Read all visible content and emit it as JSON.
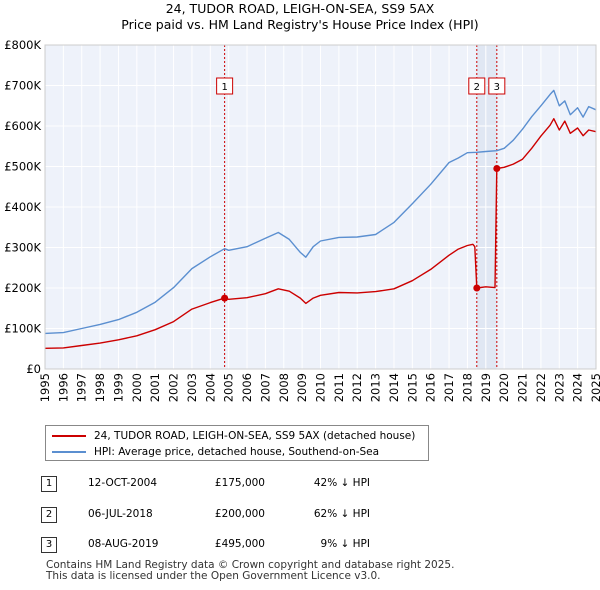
{
  "title_lines": [
    "24, TUDOR ROAD, LEIGH-ON-SEA, SS9 5AX",
    "Price paid vs. HM Land Registry's House Price Index (HPI)"
  ],
  "chart_data": {
    "type": "line",
    "title": "24, TUDOR ROAD, LEIGH-ON-SEA, SS9 5AX — Price paid vs. HM Land Registry's House Price Index (HPI)",
    "xlabel": "",
    "ylabel": "",
    "xlim": [
      1995,
      2025
    ],
    "ylim": [
      0,
      800000
    ],
    "grid": true,
    "x_ticks": [
      1995,
      1996,
      1997,
      1998,
      1999,
      2000,
      2001,
      2002,
      2003,
      2004,
      2005,
      2006,
      2007,
      2008,
      2009,
      2010,
      2011,
      2012,
      2013,
      2014,
      2015,
      2016,
      2017,
      2018,
      2019,
      2020,
      2021,
      2022,
      2023,
      2024,
      2025
    ],
    "y_ticks": [
      0,
      100000,
      200000,
      300000,
      400000,
      500000,
      600000,
      700000,
      800000
    ],
    "y_tick_labels": [
      "£0",
      "£100K",
      "£200K",
      "£300K",
      "£400K",
      "£500K",
      "£600K",
      "£700K",
      "£800K"
    ],
    "series": [
      {
        "name": "24, TUDOR ROAD, LEIGH-ON-SEA, SS9 5AX (detached house)",
        "color": "#cc0000",
        "points": [
          [
            1995.0,
            51000
          ],
          [
            1996.0,
            52000
          ],
          [
            1997.0,
            58000
          ],
          [
            1998.0,
            64000
          ],
          [
            1999.0,
            72000
          ],
          [
            2000.0,
            82000
          ],
          [
            2001.0,
            97000
          ],
          [
            2002.0,
            117000
          ],
          [
            2003.0,
            148000
          ],
          [
            2004.0,
            164000
          ],
          [
            2004.78,
            175000
          ],
          [
            2005.0,
            172000
          ],
          [
            2006.0,
            176000
          ],
          [
            2007.0,
            186000
          ],
          [
            2007.7,
            198000
          ],
          [
            2008.3,
            192000
          ],
          [
            2008.9,
            175000
          ],
          [
            2009.2,
            162000
          ],
          [
            2009.6,
            175000
          ],
          [
            2010.0,
            182000
          ],
          [
            2011.0,
            189000
          ],
          [
            2012.0,
            188000
          ],
          [
            2013.0,
            191000
          ],
          [
            2014.0,
            198000
          ],
          [
            2015.0,
            218000
          ],
          [
            2016.0,
            246000
          ],
          [
            2017.0,
            281000
          ],
          [
            2017.5,
            296000
          ],
          [
            2018.0,
            305000
          ],
          [
            2018.3,
            308000
          ],
          [
            2018.4,
            302000
          ],
          [
            2018.51,
            200000
          ],
          [
            2019.0,
            203000
          ],
          [
            2019.5,
            201000
          ],
          [
            2019.6,
            495000
          ],
          [
            2020.0,
            498000
          ],
          [
            2020.5,
            506000
          ],
          [
            2021.0,
            518000
          ],
          [
            2021.5,
            545000
          ],
          [
            2022.0,
            575000
          ],
          [
            2022.5,
            602000
          ],
          [
            2022.7,
            618000
          ],
          [
            2023.0,
            590000
          ],
          [
            2023.3,
            612000
          ],
          [
            2023.6,
            582000
          ],
          [
            2024.0,
            595000
          ],
          [
            2024.3,
            576000
          ],
          [
            2024.6,
            590000
          ],
          [
            2025.0,
            586000
          ]
        ]
      },
      {
        "name": "HPI: Average price, detached house, Southend-on-Sea",
        "color": "#5b8fd0",
        "points": [
          [
            1995.0,
            88000
          ],
          [
            1996.0,
            90000
          ],
          [
            1997.0,
            100000
          ],
          [
            1998.0,
            110000
          ],
          [
            1999.0,
            122000
          ],
          [
            2000.0,
            140000
          ],
          [
            2001.0,
            165000
          ],
          [
            2002.0,
            201000
          ],
          [
            2003.0,
            248000
          ],
          [
            2004.0,
            277000
          ],
          [
            2004.78,
            297000
          ],
          [
            2005.0,
            293000
          ],
          [
            2006.0,
            302000
          ],
          [
            2007.0,
            323000
          ],
          [
            2007.7,
            337000
          ],
          [
            2008.3,
            320000
          ],
          [
            2008.9,
            288000
          ],
          [
            2009.2,
            276000
          ],
          [
            2009.6,
            302000
          ],
          [
            2010.0,
            316000
          ],
          [
            2011.0,
            325000
          ],
          [
            2012.0,
            326000
          ],
          [
            2013.0,
            332000
          ],
          [
            2014.0,
            362000
          ],
          [
            2015.0,
            408000
          ],
          [
            2016.0,
            456000
          ],
          [
            2017.0,
            510000
          ],
          [
            2017.5,
            521000
          ],
          [
            2018.0,
            534000
          ],
          [
            2018.51,
            535000
          ],
          [
            2019.0,
            537000
          ],
          [
            2019.6,
            539000
          ],
          [
            2020.0,
            545000
          ],
          [
            2020.5,
            565000
          ],
          [
            2021.0,
            592000
          ],
          [
            2021.5,
            623000
          ],
          [
            2022.0,
            650000
          ],
          [
            2022.5,
            678000
          ],
          [
            2022.7,
            688000
          ],
          [
            2023.0,
            650000
          ],
          [
            2023.3,
            662000
          ],
          [
            2023.6,
            628000
          ],
          [
            2024.0,
            645000
          ],
          [
            2024.3,
            622000
          ],
          [
            2024.6,
            648000
          ],
          [
            2025.0,
            640000
          ]
        ]
      }
    ],
    "sale_markers": [
      {
        "label": "1",
        "x": 2004.78,
        "y": 175000
      },
      {
        "label": "2",
        "x": 2018.51,
        "y": 200000
      },
      {
        "label": "3",
        "x": 2019.6,
        "y": 495000
      }
    ],
    "legend_position": "below"
  },
  "legend": [
    {
      "label": "24, TUDOR ROAD, LEIGH-ON-SEA, SS9 5AX (detached house)",
      "color": "#cc0000"
    },
    {
      "label": "HPI: Average price, detached house, Southend-on-Sea",
      "color": "#5b8fd0"
    }
  ],
  "transactions": [
    {
      "num": "1",
      "date": "12-OCT-2004",
      "price": "£175,000",
      "hpi": "42% ↓ HPI"
    },
    {
      "num": "2",
      "date": "06-JUL-2018",
      "price": "£200,000",
      "hpi": "62% ↓ HPI"
    },
    {
      "num": "3",
      "date": "08-AUG-2019",
      "price": "£495,000",
      "hpi": "9% ↓ HPI"
    }
  ],
  "footer_lines": [
    "Contains HM Land Registry data © Crown copyright and database right 2025.",
    "This data is licensed under the Open Government Licence v3.0."
  ]
}
